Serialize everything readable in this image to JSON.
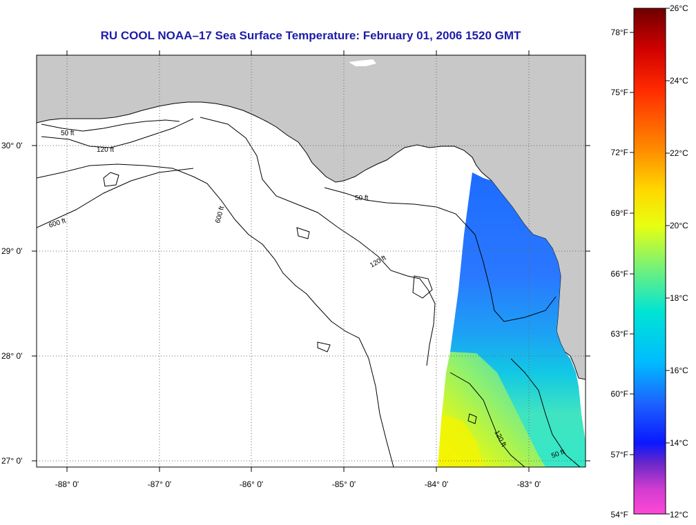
{
  "title": "RU COOL  NOAA–17  Sea Surface Temperature:  February 01, 2006 1520 GMT",
  "map": {
    "lon_labels": [
      "-88° 0'",
      "-87° 0'",
      "-86° 0'",
      "-85° 0'",
      "-84° 0'",
      "-83° 0'"
    ],
    "lat_labels": [
      "30° 0'",
      "29° 0'",
      "28° 0'",
      "27° 0'"
    ],
    "land_color": "#c8c8c8",
    "water_color": "#ffffff",
    "contours": [
      {
        "name": "contour-50ft-west",
        "label": "50 ft"
      },
      {
        "name": "contour-120ft-west",
        "label": "120 ft"
      },
      {
        "name": "contour-600ft",
        "label": "600 ft"
      },
      {
        "name": "contour-600ft-south",
        "label": "600 ft"
      },
      {
        "name": "contour-120ft-big-bend",
        "label": "120 ft"
      },
      {
        "name": "contour-50ft-big-bend",
        "label": "50 ft"
      },
      {
        "name": "contour-120ft-south",
        "label": "120 ft"
      },
      {
        "name": "contour-50ft-south",
        "label": "50 ft"
      }
    ]
  },
  "colorbar": {
    "fahrenheit_labels": [
      "78°F",
      "75°F",
      "72°F",
      "69°F",
      "66°F",
      "63°F",
      "60°F",
      "57°F",
      "54°F"
    ],
    "celsius_labels": [
      "26°C",
      "24°C",
      "22°C",
      "20°C",
      "18°C",
      "16°C",
      "14°C",
      "12°C"
    ],
    "gradient_colors": [
      "#7a0000",
      "#d40000",
      "#ff2a00",
      "#ff8a00",
      "#ffd800",
      "#e6ff00",
      "#7cf07c",
      "#00e8d0",
      "#00bfff",
      "#1e66ff",
      "#0a1eff",
      "#6a2cc8",
      "#d23cd2",
      "#ff4ad8"
    ]
  }
}
